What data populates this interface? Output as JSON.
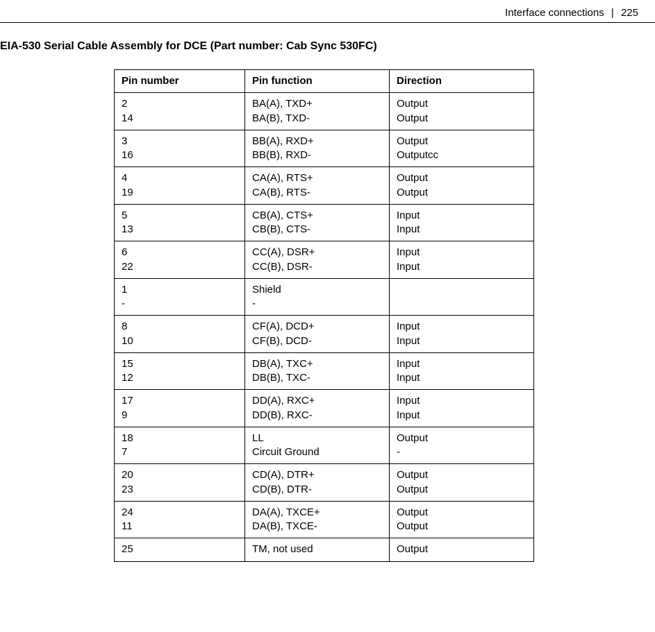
{
  "header": {
    "section": "Interface connections",
    "separator": "|",
    "page": "225"
  },
  "title": "EIA-530 Serial Cable Assembly for DCE (Part number: Cab Sync 530FC)",
  "table": {
    "columns": [
      "Pin number",
      "Pin function",
      "Direction"
    ],
    "rows": [
      {
        "pin": "2\n14",
        "func": "BA(A), TXD+\nBA(B), TXD-",
        "dir": "Output\nOutput"
      },
      {
        "pin": "3\n16",
        "func": "BB(A), RXD+\nBB(B), RXD-",
        "dir": "Output\nOutputcc"
      },
      {
        "pin": "4\n19",
        "func": "CA(A), RTS+\nCA(B), RTS-",
        "dir": "Output\nOutput"
      },
      {
        "pin": "5\n13",
        "func": "CB(A), CTS+\nCB(B), CTS-",
        "dir": "Input\nInput"
      },
      {
        "pin": "6\n22",
        "func": "CC(A), DSR+\nCC(B), DSR-",
        "dir": "Input\nInput"
      },
      {
        "pin": "1\n-",
        "func": "Shield\n-",
        "dir": ""
      },
      {
        "pin": "8\n10",
        "func": "CF(A), DCD+\nCF(B), DCD-",
        "dir": "Input\nInput"
      },
      {
        "pin": "15\n12",
        "func": "DB(A), TXC+\nDB(B), TXC-",
        "dir": "Input\nInput"
      },
      {
        "pin": "17\n9",
        "func": "DD(A), RXC+\nDD(B), RXC-",
        "dir": "Input\nInput"
      },
      {
        "pin": "18\n7",
        "func": "LL\nCircuit Ground",
        "dir": "Output\n-"
      },
      {
        "pin": "20\n23",
        "func": "CD(A), DTR+\nCD(B), DTR-",
        "dir": "Output\nOutput"
      },
      {
        "pin": "24\n11",
        "func": "DA(A), TXCE+\nDA(B), TXCE-",
        "dir": "Output\nOutput"
      },
      {
        "pin": "25",
        "func": "TM, not used",
        "dir": "Output"
      }
    ]
  }
}
